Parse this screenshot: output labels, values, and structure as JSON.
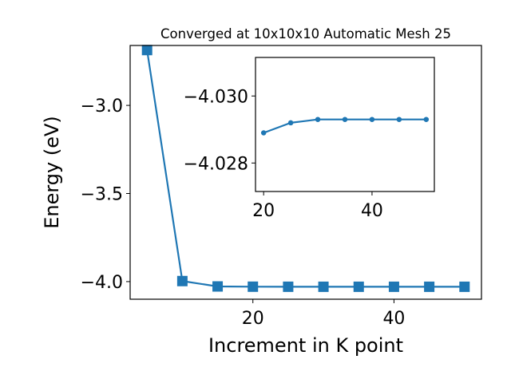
{
  "chart_data": [
    {
      "type": "line",
      "title": "Converged at 10x10x10 Automatic Mesh 25",
      "xlabel": "Increment in K point",
      "ylabel": "Energy (eV)",
      "xlim": [
        2.6,
        52.4
      ],
      "ylim": [
        -4.1,
        -2.66
      ],
      "xticks": [
        20,
        40
      ],
      "yticks": [
        -3.0,
        -3.5,
        -4.0
      ],
      "xtick_labels": [
        "20",
        "40"
      ],
      "ytick_labels": [
        "−3.0",
        "−3.5",
        "−4.0"
      ],
      "marker": "square",
      "color": "#1f77b4",
      "grid": false,
      "series": [
        {
          "x": [
            5,
            10,
            15,
            20,
            25,
            30,
            35,
            40,
            45,
            50
          ],
          "values": [
            -2.686,
            -3.997,
            -4.0275,
            -4.0289,
            -4.0292,
            -4.0293,
            -4.0293,
            -4.0293,
            -4.0293,
            -4.0293
          ]
        }
      ]
    },
    {
      "type": "line",
      "title": "",
      "xlabel": "",
      "ylabel": "",
      "xlim": [
        18.5,
        51.5
      ],
      "ylim": [
        -4.02715,
        -4.03115
      ],
      "xticks": [
        20,
        40
      ],
      "yticks": [
        -4.03,
        -4.028
      ],
      "xtick_labels": [
        "20",
        "40"
      ],
      "ytick_labels": [
        "−4.030",
        "−4.028"
      ],
      "marker": "circle",
      "color": "#1f77b4",
      "grid": false,
      "series": [
        {
          "x": [
            20,
            25,
            30,
            35,
            40,
            45,
            50
          ],
          "values": [
            -4.0289,
            -4.0292,
            -4.0293,
            -4.0293,
            -4.0293,
            -4.0293,
            -4.0293
          ]
        }
      ]
    }
  ]
}
